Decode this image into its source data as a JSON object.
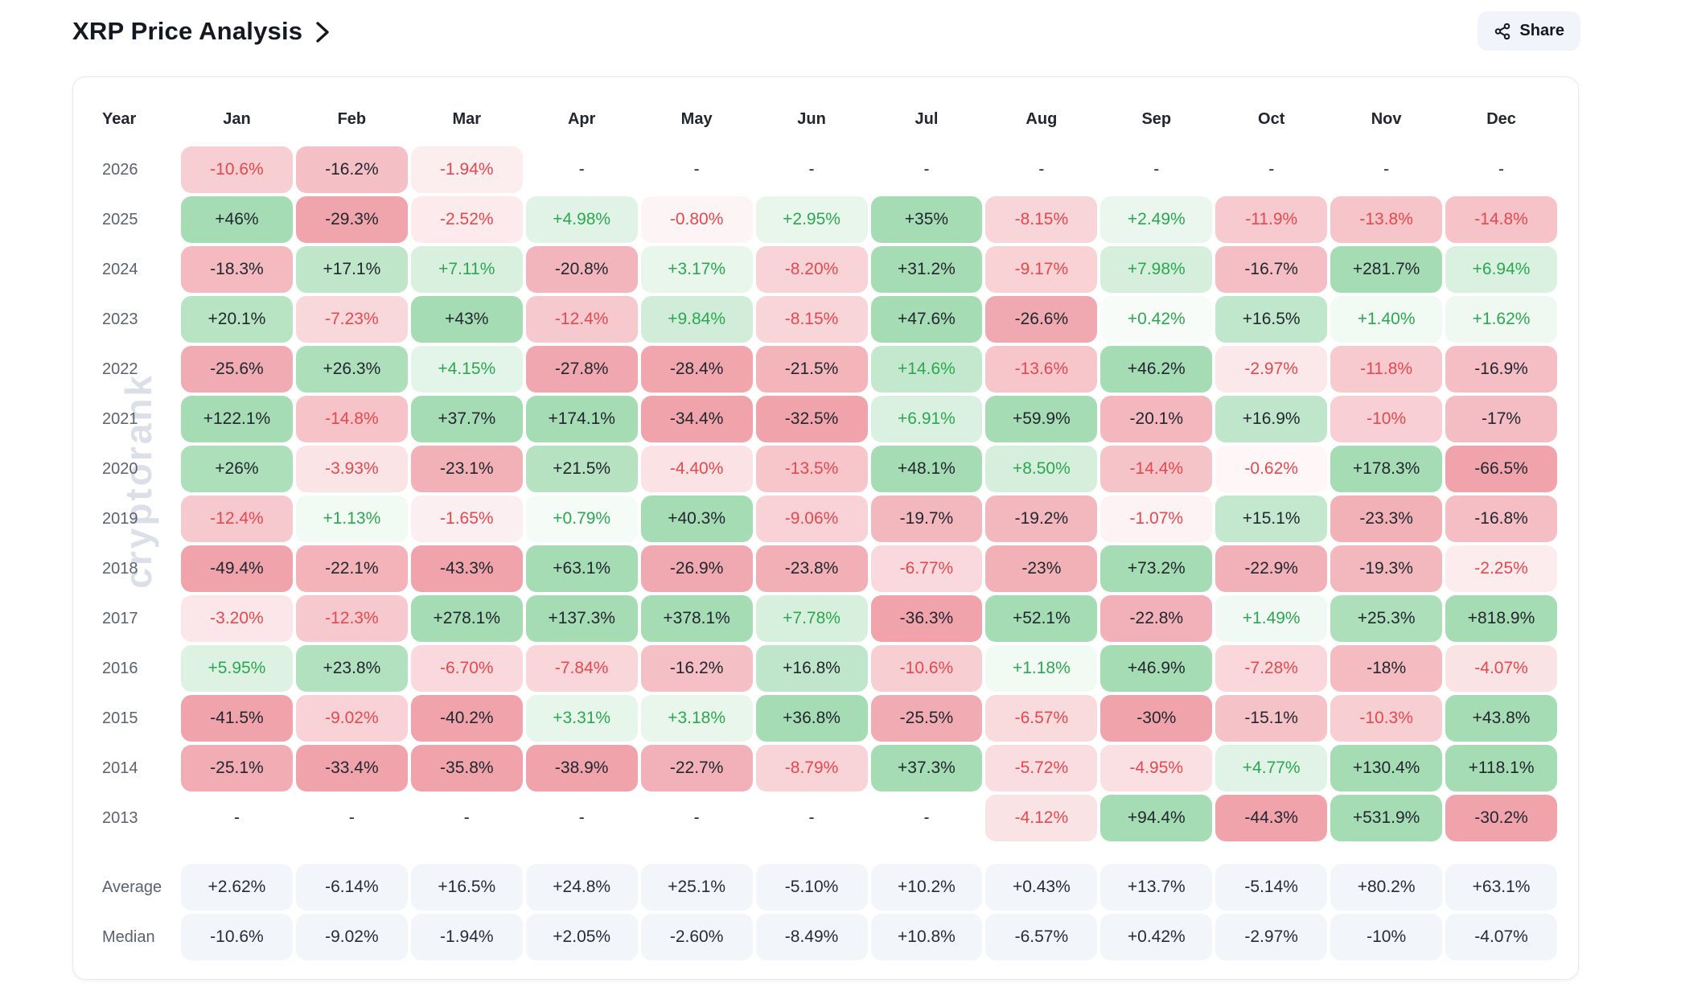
{
  "page": {
    "title": "XRP Price Analysis",
    "share_label": "Share"
  },
  "watermark": "cryptorank",
  "icons": {
    "chevron_right": "chevron-right",
    "share": "share-nodes"
  },
  "colors": {
    "positive_base": "#4bb969",
    "negative_base": "#e14757",
    "positive_text": "#2ba84f",
    "negative_text": "#e5484d",
    "dark_text": "#21262f",
    "summary_bg": "#f2f6fb",
    "year_label": "#5b6170"
  },
  "chart_data": {
    "type": "heatmap",
    "title": "XRP Price Analysis",
    "unit": "% monthly return",
    "year_header": "Year",
    "months": [
      "Jan",
      "Feb",
      "Mar",
      "Apr",
      "May",
      "Jun",
      "Jul",
      "Aug",
      "Sep",
      "Oct",
      "Nov",
      "Dec"
    ],
    "rows": [
      {
        "year": "2026",
        "values": [
          "-10.6%",
          "-16.2%",
          "-1.94%",
          "-",
          "-",
          "-",
          "-",
          "-",
          "-",
          "-",
          "-",
          "-"
        ]
      },
      {
        "year": "2025",
        "values": [
          "+46%",
          "-29.3%",
          "-2.52%",
          "+4.98%",
          "-0.80%",
          "+2.95%",
          "+35%",
          "-8.15%",
          "+2.49%",
          "-11.9%",
          "-13.8%",
          "-14.8%"
        ]
      },
      {
        "year": "2024",
        "values": [
          "-18.3%",
          "+17.1%",
          "+7.11%",
          "-20.8%",
          "+3.17%",
          "-8.20%",
          "+31.2%",
          "-9.17%",
          "+7.98%",
          "-16.7%",
          "+281.7%",
          "+6.94%"
        ]
      },
      {
        "year": "2023",
        "values": [
          "+20.1%",
          "-7.23%",
          "+43%",
          "-12.4%",
          "+9.84%",
          "-8.15%",
          "+47.6%",
          "-26.6%",
          "+0.42%",
          "+16.5%",
          "+1.40%",
          "+1.62%"
        ]
      },
      {
        "year": "2022",
        "values": [
          "-25.6%",
          "+26.3%",
          "+4.15%",
          "-27.8%",
          "-28.4%",
          "-21.5%",
          "+14.6%",
          "-13.6%",
          "+46.2%",
          "-2.97%",
          "-11.8%",
          "-16.9%"
        ]
      },
      {
        "year": "2021",
        "values": [
          "+122.1%",
          "-14.8%",
          "+37.7%",
          "+174.1%",
          "-34.4%",
          "-32.5%",
          "+6.91%",
          "+59.9%",
          "-20.1%",
          "+16.9%",
          "-10%",
          "-17%"
        ]
      },
      {
        "year": "2020",
        "values": [
          "+26%",
          "-3.93%",
          "-23.1%",
          "+21.5%",
          "-4.40%",
          "-13.5%",
          "+48.1%",
          "+8.50%",
          "-14.4%",
          "-0.62%",
          "+178.3%",
          "-66.5%"
        ]
      },
      {
        "year": "2019",
        "values": [
          "-12.4%",
          "+1.13%",
          "-1.65%",
          "+0.79%",
          "+40.3%",
          "-9.06%",
          "-19.7%",
          "-19.2%",
          "-1.07%",
          "+15.1%",
          "-23.3%",
          "-16.8%"
        ]
      },
      {
        "year": "2018",
        "values": [
          "-49.4%",
          "-22.1%",
          "-43.3%",
          "+63.1%",
          "-26.9%",
          "-23.8%",
          "-6.77%",
          "-23%",
          "+73.2%",
          "-22.9%",
          "-19.3%",
          "-2.25%"
        ]
      },
      {
        "year": "2017",
        "values": [
          "-3.20%",
          "-12.3%",
          "+278.1%",
          "+137.3%",
          "+378.1%",
          "+7.78%",
          "-36.3%",
          "+52.1%",
          "-22.8%",
          "+1.49%",
          "+25.3%",
          "+818.9%"
        ]
      },
      {
        "year": "2016",
        "values": [
          "+5.95%",
          "+23.8%",
          "-6.70%",
          "-7.84%",
          "-16.2%",
          "+16.8%",
          "-10.6%",
          "+1.18%",
          "+46.9%",
          "-7.28%",
          "-18%",
          "-4.07%"
        ]
      },
      {
        "year": "2015",
        "values": [
          "-41.5%",
          "-9.02%",
          "-40.2%",
          "+3.31%",
          "+3.18%",
          "+36.8%",
          "-25.5%",
          "-6.57%",
          "-30%",
          "-15.1%",
          "-10.3%",
          "+43.8%"
        ]
      },
      {
        "year": "2014",
        "values": [
          "-25.1%",
          "-33.4%",
          "-35.8%",
          "-38.9%",
          "-22.7%",
          "-8.79%",
          "+37.3%",
          "-5.72%",
          "-4.95%",
          "+4.77%",
          "+130.4%",
          "+118.1%"
        ]
      },
      {
        "year": "2013",
        "values": [
          "-",
          "-",
          "-",
          "-",
          "-",
          "-",
          "-",
          "-4.12%",
          "+94.4%",
          "-44.3%",
          "+531.9%",
          "-30.2%"
        ]
      }
    ],
    "summary": [
      {
        "label": "Average",
        "values": [
          "+2.62%",
          "-6.14%",
          "+16.5%",
          "+24.8%",
          "+25.1%",
          "-5.10%",
          "+10.2%",
          "+0.43%",
          "+13.7%",
          "-5.14%",
          "+80.2%",
          "+63.1%"
        ]
      },
      {
        "label": "Median",
        "values": [
          "-10.6%",
          "-9.02%",
          "-1.94%",
          "+2.05%",
          "-2.60%",
          "-8.49%",
          "+10.8%",
          "-6.57%",
          "+0.42%",
          "-2.97%",
          "-10%",
          "-4.07%"
        ]
      }
    ],
    "legend_position": "none",
    "grid": false
  }
}
